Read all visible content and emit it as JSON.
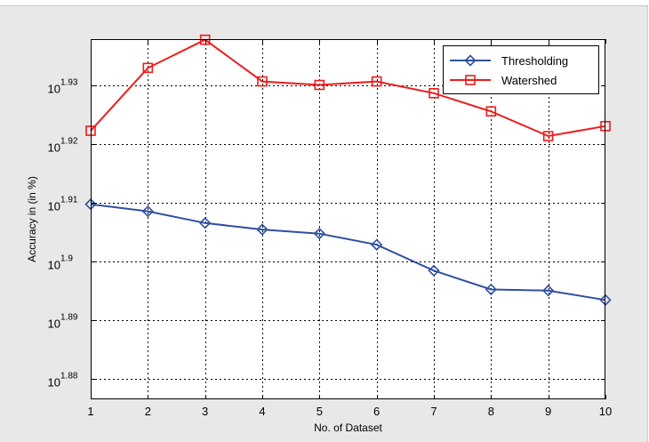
{
  "chart_data": {
    "type": "line",
    "title": "",
    "xlabel": "No. of Dataset",
    "ylabel": "Accuracy in (in %)",
    "y_scale": "log10",
    "x": [
      1,
      2,
      3,
      4,
      5,
      6,
      7,
      8,
      9,
      10
    ],
    "xlim": [
      1,
      10
    ],
    "ylim_exponent": [
      1.8765,
      1.9378
    ],
    "grid": true,
    "grid_style": "dotted",
    "legend_position": "top-right",
    "x_ticks": [
      "1",
      "2",
      "3",
      "4",
      "5",
      "6",
      "7",
      "8",
      "9",
      "10"
    ],
    "y_ticks": [
      {
        "base": "10",
        "exponent": "1.88",
        "value": 1.88
      },
      {
        "base": "10",
        "exponent": "1.89",
        "value": 1.89
      },
      {
        "base": "10",
        "exponent": "1.9",
        "value": 1.9
      },
      {
        "base": "10",
        "exponent": "1.91",
        "value": 1.91
      },
      {
        "base": "10",
        "exponent": "1.92",
        "value": 1.92
      },
      {
        "base": "10",
        "exponent": "1.93",
        "value": 1.93
      }
    ],
    "series": [
      {
        "name": "Thresholding",
        "color": "#2f4f9f",
        "marker": "diamond",
        "y_exponent": [
          1.9097,
          1.9085,
          1.9065,
          1.9054,
          1.9047,
          1.9028,
          1.8984,
          1.8952,
          1.895,
          1.8934
        ]
      },
      {
        "name": "Watershed",
        "color": "#ee1c1c",
        "marker": "square",
        "y_exponent": [
          1.9222,
          1.9329,
          1.9377,
          1.9306,
          1.93,
          1.9306,
          1.9286,
          1.9255,
          1.9213,
          1.923
        ]
      }
    ]
  }
}
